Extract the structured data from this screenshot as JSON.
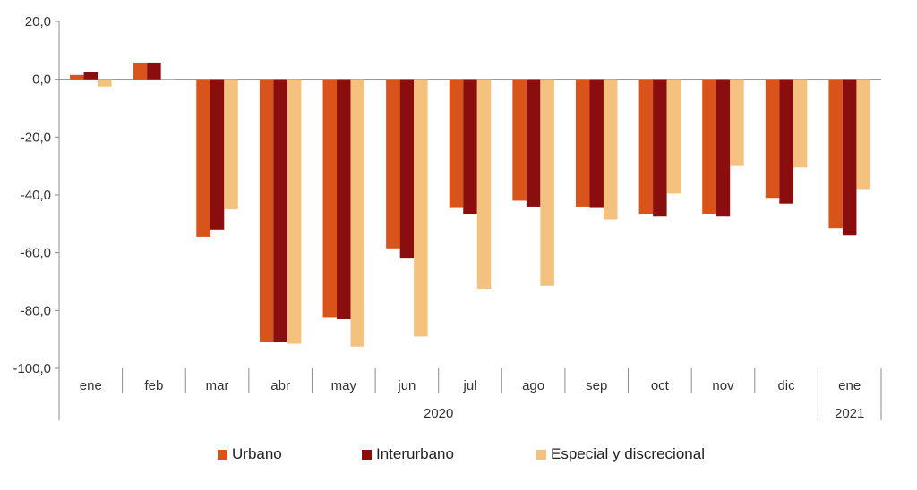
{
  "chart_data": {
    "type": "bar",
    "categories": [
      "ene",
      "feb",
      "mar",
      "abr",
      "may",
      "jun",
      "jul",
      "ago",
      "sep",
      "oct",
      "nov",
      "dic",
      "ene"
    ],
    "year_groups": [
      {
        "label": "2020",
        "count": 12
      },
      {
        "label": "2021",
        "count": 1
      }
    ],
    "series": [
      {
        "name": "Urbano",
        "color": "#d9541a",
        "values": [
          1.5,
          5.8,
          -54.5,
          -91.0,
          -82.5,
          -58.5,
          -44.5,
          -42.0,
          -44.0,
          -46.5,
          -46.5,
          -41.0,
          -51.5
        ]
      },
      {
        "name": "Interurbano",
        "color": "#8b0e0e",
        "values": [
          2.5,
          5.8,
          -52.0,
          -91.0,
          -83.0,
          -62.0,
          -46.5,
          -44.0,
          -44.5,
          -47.5,
          -47.5,
          -43.0,
          -54.0
        ]
      },
      {
        "name": "Especial y discrecional",
        "color": "#f4c27e",
        "values": [
          -2.5,
          0.0,
          -45.0,
          -91.5,
          -92.5,
          -89.0,
          -72.5,
          -71.5,
          -48.5,
          -39.5,
          -30.0,
          -30.5,
          -38.0
        ]
      }
    ],
    "ylim": [
      -100,
      20
    ],
    "yticks": [
      20,
      0,
      -20,
      -40,
      -60,
      -80,
      -100
    ],
    "ytick_labels": [
      "20,0",
      "0,0",
      "-20,0",
      "-40,0",
      "-60,0",
      "-80,0",
      "-100,0"
    ],
    "xlabel": "",
    "ylabel": "",
    "legend_position": "bottom"
  }
}
